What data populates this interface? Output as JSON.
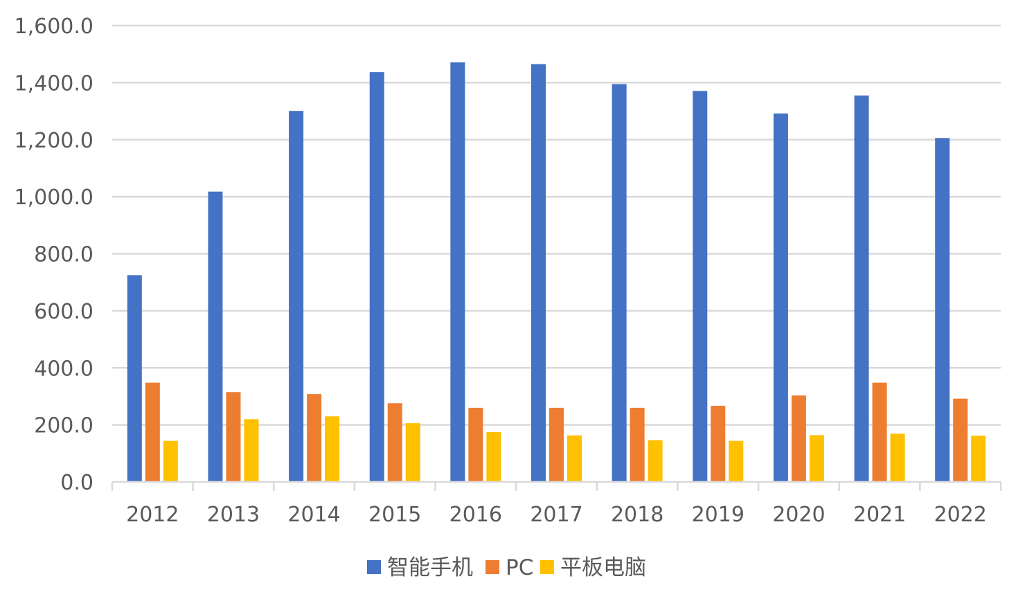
{
  "chart_data": {
    "type": "bar",
    "title": "",
    "xlabel": "",
    "ylabel": "",
    "ylim": [
      0,
      1600
    ],
    "y_ticks": [
      "0.0",
      "200.0",
      "400.0",
      "600.0",
      "800.0",
      "1,000.0",
      "1,200.0",
      "1,400.0",
      "1,600.0"
    ],
    "y_tick_values": [
      0,
      200,
      400,
      600,
      800,
      1000,
      1200,
      1400,
      1600
    ],
    "grid": true,
    "legend_position": "bottom",
    "categories": [
      "2012",
      "2013",
      "2014",
      "2015",
      "2016",
      "2017",
      "2018",
      "2019",
      "2020",
      "2021",
      "2022"
    ],
    "series": [
      {
        "name": "智能手机",
        "color": "#4472C4",
        "values": [
          725,
          1018,
          1301,
          1437,
          1471,
          1465,
          1395,
          1371,
          1292,
          1355,
          1206
        ]
      },
      {
        "name": "PC",
        "color": "#ED7D31",
        "values": [
          348,
          315,
          308,
          276,
          260,
          260,
          260,
          267,
          303,
          348,
          292
        ]
      },
      {
        "name": "平板电脑",
        "color": "#FFC000",
        "values": [
          144,
          220,
          230,
          206,
          175,
          163,
          146,
          144,
          164,
          169,
          162
        ]
      }
    ]
  }
}
